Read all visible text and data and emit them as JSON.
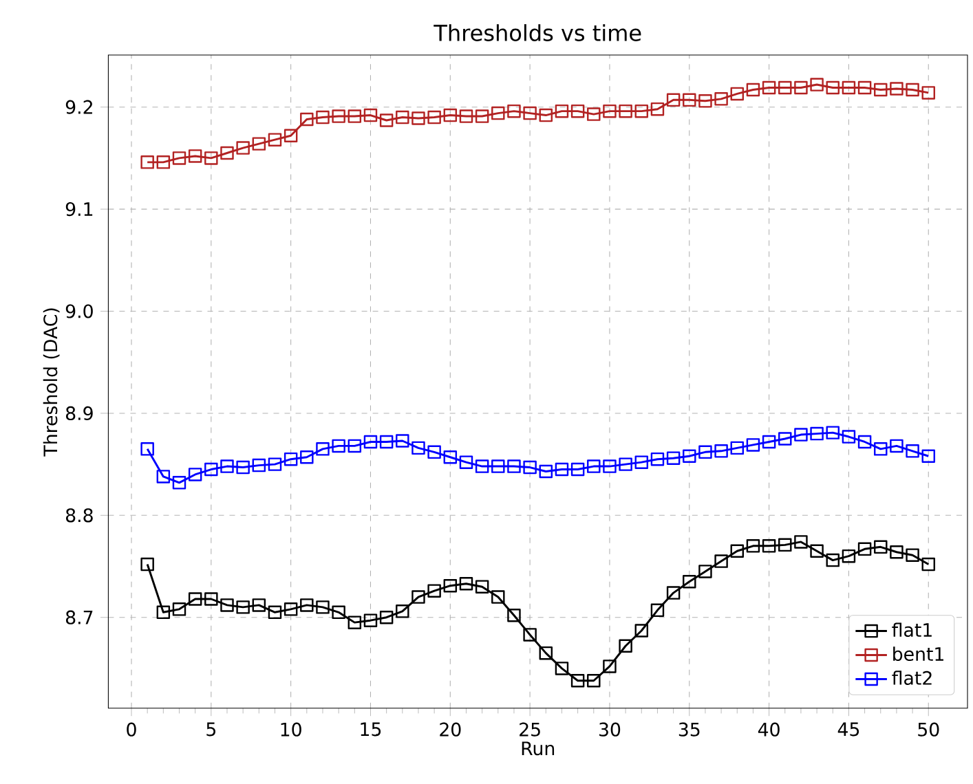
{
  "chart_data": {
    "type": "line",
    "title": "Thresholds vs time",
    "xlabel": "Run",
    "ylabel": "Threshold (DAC)",
    "x": [
      1,
      2,
      3,
      4,
      5,
      6,
      7,
      8,
      9,
      10,
      11,
      12,
      13,
      14,
      15,
      16,
      17,
      18,
      19,
      20,
      21,
      22,
      23,
      24,
      25,
      26,
      27,
      28,
      29,
      30,
      31,
      32,
      33,
      34,
      35,
      36,
      37,
      38,
      39,
      40,
      41,
      42,
      43,
      44,
      45,
      46,
      47,
      48,
      49,
      50
    ],
    "xlim": [
      -1.45,
      52.45
    ],
    "xticks": [
      0,
      5,
      10,
      15,
      20,
      25,
      30,
      35,
      40,
      45,
      50
    ],
    "ylim": [
      8.611,
      9.251
    ],
    "yticks": [
      {
        "value": 8.7,
        "label": "8.7"
      },
      {
        "value": 8.8,
        "label": "8.8"
      },
      {
        "value": 8.9,
        "label": "8.9"
      },
      {
        "value": 9.0,
        "label": "9.0"
      },
      {
        "value": 9.1,
        "label": "9.1"
      },
      {
        "value": 9.2,
        "label": "9.2"
      }
    ],
    "grid": true,
    "legend": "bottom right",
    "marker": "square",
    "line_style": "solid",
    "series": [
      {
        "name": "flat1",
        "color": "#000000",
        "values": [
          8.752,
          8.705,
          8.708,
          8.718,
          8.718,
          8.712,
          8.71,
          8.712,
          8.705,
          8.708,
          8.712,
          8.71,
          8.705,
          8.695,
          8.697,
          8.7,
          8.706,
          8.72,
          8.726,
          8.731,
          8.733,
          8.73,
          8.72,
          8.702,
          8.683,
          8.665,
          8.65,
          8.638,
          8.638,
          8.652,
          8.672,
          8.687,
          8.707,
          8.724,
          8.735,
          8.745,
          8.755,
          8.765,
          8.77,
          8.77,
          8.771,
          8.774,
          8.765,
          8.756,
          8.76,
          8.767,
          8.769,
          8.764,
          8.761,
          8.752
        ]
      },
      {
        "name": "bent1",
        "color": "#b22222",
        "values": [
          9.146,
          9.146,
          9.15,
          9.152,
          9.15,
          9.155,
          9.16,
          9.164,
          9.168,
          9.172,
          9.188,
          9.19,
          9.191,
          9.191,
          9.192,
          9.187,
          9.19,
          9.189,
          9.19,
          9.192,
          9.191,
          9.191,
          9.194,
          9.196,
          9.194,
          9.192,
          9.196,
          9.196,
          9.193,
          9.196,
          9.196,
          9.196,
          9.198,
          9.207,
          9.207,
          9.206,
          9.208,
          9.213,
          9.217,
          9.219,
          9.219,
          9.219,
          9.222,
          9.219,
          9.219,
          9.219,
          9.217,
          9.218,
          9.217,
          9.214
        ]
      },
      {
        "name": "flat2",
        "color": "#0000ff",
        "values": [
          8.865,
          8.838,
          8.832,
          8.84,
          8.845,
          8.848,
          8.847,
          8.849,
          8.85,
          8.855,
          8.857,
          8.865,
          8.868,
          8.868,
          8.872,
          8.872,
          8.873,
          8.866,
          8.862,
          8.857,
          8.852,
          8.848,
          8.848,
          8.848,
          8.847,
          8.843,
          8.845,
          8.845,
          8.848,
          8.848,
          8.85,
          8.852,
          8.855,
          8.856,
          8.858,
          8.862,
          8.863,
          8.866,
          8.869,
          8.872,
          8.875,
          8.879,
          8.88,
          8.881,
          8.877,
          8.872,
          8.865,
          8.868,
          8.863,
          8.858
        ]
      }
    ]
  }
}
